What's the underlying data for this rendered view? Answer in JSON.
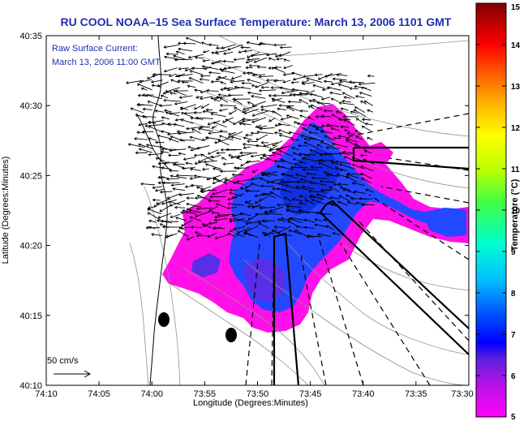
{
  "title": "RU COOL   NOAA–15  Sea Surface Temperature:  March 13, 2006 1101 GMT",
  "annotation": {
    "line1": "Raw Surface Current:",
    "line2": "March 13, 2006 11:00 GMT"
  },
  "scale_label": "50 cm/s",
  "axes": {
    "xlabel": "Longitude (Degrees:Minutes)",
    "ylabel": "Latitude (Degrees:Minutes)",
    "x_ticks": [
      "74:10",
      "74:05",
      "74:00",
      "73:55",
      "73:50",
      "73:45",
      "73:40",
      "73:35",
      "73:30"
    ],
    "y_ticks": [
      "40:35",
      "40:30",
      "40:25",
      "40:20",
      "40:15",
      "40:10"
    ],
    "x_range_deg_min": [
      "74:10",
      "73:30"
    ],
    "y_range_deg_min": [
      "40:10",
      "40:35"
    ]
  },
  "colorbar": {
    "title": "Temperature (°C)",
    "min": 5,
    "max": 15,
    "ticks": [
      "15",
      "14",
      "13",
      "12",
      "11",
      "10",
      "9",
      "8",
      "7",
      "6",
      "5"
    ],
    "colors": [
      "#ff00ff",
      "#c010e8",
      "#6020e0",
      "#0000ff",
      "#0060ff",
      "#00bfff",
      "#00ffd0",
      "#40ff40",
      "#c0ff00",
      "#ffff00",
      "#ffb000",
      "#ff5000",
      "#ff0000",
      "#c00000",
      "#800000"
    ]
  },
  "colors": {
    "land": "#ffffff",
    "title": "#1f2fb0",
    "sst_cold": "#ff10e8",
    "sst_mid": "#3a3af0",
    "sst_warm": "#1040ff"
  }
}
